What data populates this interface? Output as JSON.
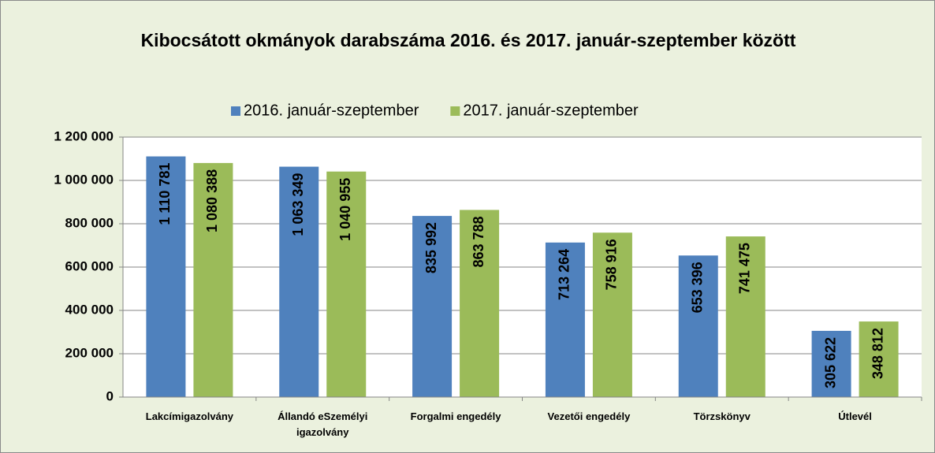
{
  "chart_data": {
    "type": "bar",
    "title": "Kibocsátott okmányok darabszáma 2016. és 2017. január-szeptember között",
    "categories": [
      "Lakcímigazolvány",
      "Állandó eSzemélyi igazolvány",
      "Forgalmi engedély",
      "Vezetői engedély",
      "Törzskönyv",
      "Útlevél"
    ],
    "series": [
      {
        "name": "2016. január-szeptember",
        "color": "#4f81bd",
        "values": [
          1110781,
          1063349,
          835992,
          713264,
          653396,
          305622
        ],
        "value_labels": [
          "1 110 781",
          "1 063 349",
          "835 992",
          "713 264",
          "653 396",
          "305 622"
        ]
      },
      {
        "name": "2017. január-szeptember",
        "color": "#9bbb59",
        "values": [
          1080388,
          1040955,
          863788,
          758916,
          741475,
          348812
        ],
        "value_labels": [
          "1 080 388",
          "1 040 955",
          "863 788",
          "758 916",
          "741 475",
          "348 812"
        ]
      }
    ],
    "ylim": [
      0,
      1200000
    ],
    "yticks": [
      0,
      {
        "value": 200000,
        "label": "200 000"
      },
      {
        "value": 400000,
        "label": "400 000"
      },
      {
        "value": 600000,
        "label": "600 000"
      },
      {
        "value": 800000,
        "label": "800 000"
      },
      {
        "value": 1000000,
        "label": "1 000 000"
      },
      {
        "value": 1200000,
        "label": "1 200 000"
      }
    ],
    "grid": true,
    "legend": "top"
  }
}
